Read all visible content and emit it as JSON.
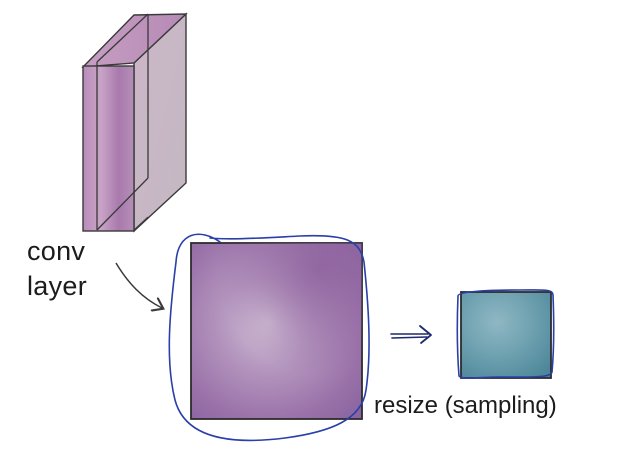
{
  "diagram": {
    "conv_label_line1": "conv",
    "conv_label_line2": "layer",
    "resize_label": "resize (sampling)"
  },
  "colors": {
    "conv_block_front": "#b48fb7",
    "conv_block_side": "#c9bcc6",
    "feature_map": "#9c77ab",
    "resized_map": "#5f97a6",
    "pen_ink": "#2a3fa8",
    "outline": "#3a3a3a"
  }
}
